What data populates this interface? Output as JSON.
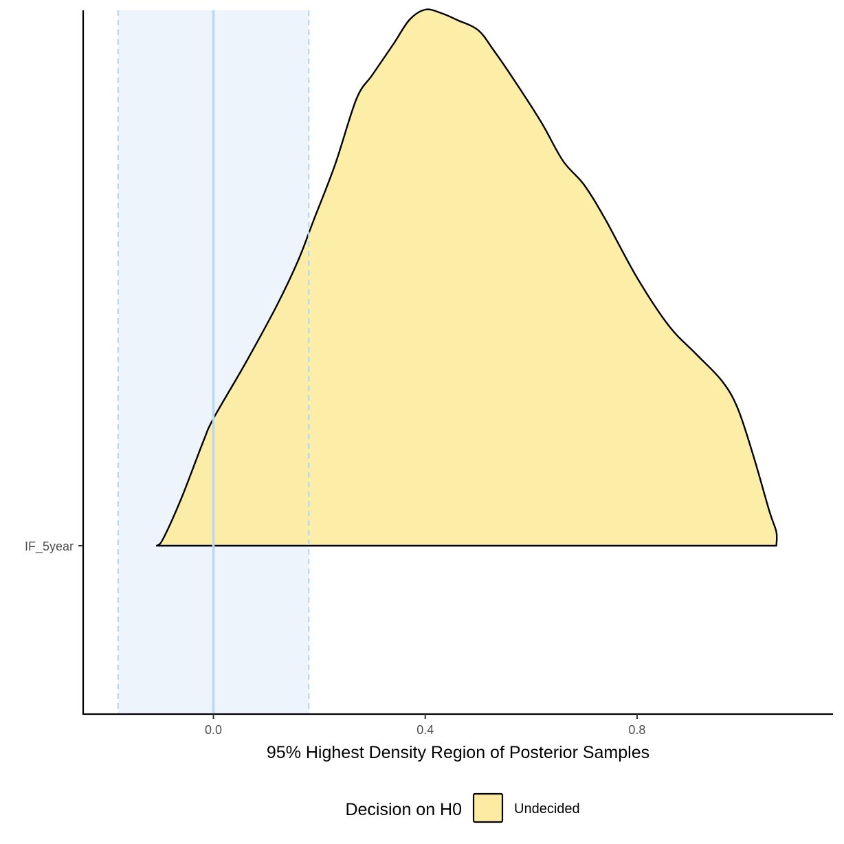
{
  "chart_data": {
    "type": "area",
    "xlabel": "95% Highest Density Region of Posterior Samples",
    "ylabel": "",
    "xlim": [
      -0.246,
      1.17
    ],
    "x_ticks": [
      {
        "value": 0.0,
        "label": "0.0"
      },
      {
        "value": 0.4,
        "label": "0.4"
      },
      {
        "value": 0.8,
        "label": "0.8"
      }
    ],
    "y_categories": [
      "IF_5year"
    ],
    "rope": {
      "low": -0.18,
      "high": 0.18,
      "center": 0.0
    },
    "legend": {
      "title": "Decision on H0",
      "position": "bottom",
      "entries": [
        {
          "label": "Undecided",
          "color": "#fceba0"
        }
      ]
    },
    "series": [
      {
        "category": "IF_5year",
        "x": [
          -0.107,
          -0.095,
          -0.06,
          -0.02,
          0.0,
          0.06,
          0.12,
          0.16,
          0.19,
          0.23,
          0.27,
          0.3,
          0.34,
          0.37,
          0.4,
          0.43,
          0.46,
          0.5,
          0.53,
          0.57,
          0.62,
          0.66,
          0.7,
          0.74,
          0.8,
          0.86,
          0.91,
          0.96,
          0.99,
          1.02,
          1.05,
          1.063,
          1.063
        ],
        "density": [
          0.0,
          0.02,
          0.14,
          0.3,
          0.37,
          0.53,
          0.7,
          0.83,
          0.95,
          1.11,
          1.3,
          1.37,
          1.46,
          1.53,
          1.56,
          1.55,
          1.53,
          1.5,
          1.44,
          1.35,
          1.23,
          1.12,
          1.05,
          0.95,
          0.78,
          0.64,
          0.56,
          0.48,
          0.4,
          0.26,
          0.1,
          0.04,
          0.0
        ]
      }
    ],
    "colors": {
      "fill": "#fceba0",
      "stroke": "#000000",
      "rope_fill": "#eef4fc",
      "rope_line": "#b9d7f4"
    }
  }
}
